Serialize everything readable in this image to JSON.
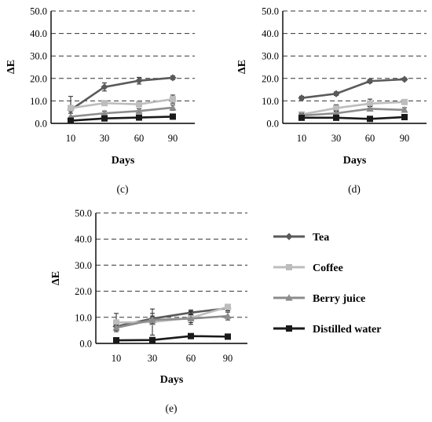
{
  "figure": {
    "legend": [
      {
        "name": "Tea",
        "color": "#5a5a5a",
        "marker": "diamond"
      },
      {
        "name": "Coffee",
        "color": "#bdbdbd",
        "marker": "square"
      },
      {
        "name": "Berry juice",
        "color": "#8c8c8c",
        "marker": "triangle"
      },
      {
        "name": "Distilled water",
        "color": "#1a1a1a",
        "marker": "square"
      }
    ]
  },
  "chart_data": [
    {
      "type": "line",
      "panel_label": "(c)",
      "xlabel": "Days",
      "ylabel": "ΔE",
      "categories": [
        "10",
        "30",
        "60",
        "90"
      ],
      "ylim": [
        0,
        50
      ],
      "yticks": [
        "0.0",
        "10.0",
        "20.0",
        "30.0",
        "40.0",
        "50.0"
      ],
      "grid": "dashed-horizontal",
      "series": [
        {
          "name": "Tea",
          "values": [
            6.0,
            16.2,
            19.0,
            20.3
          ],
          "errors": [
            6.0,
            1.8,
            1.5,
            0.8
          ]
        },
        {
          "name": "Coffee",
          "values": [
            6.8,
            9.0,
            8.5,
            10.8
          ],
          "errors": [
            1.2,
            0.8,
            1.2,
            1.8
          ]
        },
        {
          "name": "Berry juice",
          "values": [
            3.0,
            4.5,
            5.5,
            7.0
          ],
          "errors": [
            1.5,
            1.0,
            1.0,
            1.2
          ]
        },
        {
          "name": "Distilled water",
          "values": [
            1.2,
            2.2,
            2.6,
            3.0
          ],
          "errors": [
            0.5,
            0.5,
            0.5,
            0.5
          ]
        }
      ]
    },
    {
      "type": "line",
      "panel_label": "(d)",
      "xlabel": "Days",
      "ylabel": "ΔE",
      "categories": [
        "10",
        "30",
        "60",
        "90"
      ],
      "ylim": [
        0,
        50
      ],
      "yticks": [
        "0.0",
        "10.0",
        "20.0",
        "30.0",
        "40.0",
        "50.0"
      ],
      "grid": "dashed-horizontal",
      "series": [
        {
          "name": "Tea",
          "values": [
            11.3,
            13.2,
            18.8,
            19.6
          ],
          "errors": [
            0.8,
            0.8,
            0.8,
            0.6
          ]
        },
        {
          "name": "Coffee",
          "values": [
            4.0,
            6.8,
            8.8,
            9.5
          ],
          "errors": [
            1.0,
            1.5,
            2.0,
            1.0
          ]
        },
        {
          "name": "Berry juice",
          "values": [
            3.5,
            4.5,
            6.5,
            6.0
          ],
          "errors": [
            1.0,
            1.0,
            1.0,
            1.0
          ]
        },
        {
          "name": "Distilled water",
          "values": [
            2.5,
            2.5,
            2.0,
            2.8
          ],
          "errors": [
            0.5,
            0.5,
            0.5,
            0.5
          ]
        }
      ]
    },
    {
      "type": "line",
      "panel_label": "(e)",
      "xlabel": "Days",
      "ylabel": "ΔE",
      "categories": [
        "10",
        "30",
        "60",
        "90"
      ],
      "ylim": [
        0,
        50
      ],
      "yticks": [
        "0.0",
        "10.0",
        "20.0",
        "30.0",
        "40.0",
        "50.0"
      ],
      "grid": "dashed-horizontal",
      "series": [
        {
          "name": "Tea",
          "values": [
            6.5,
            9.5,
            11.8,
            13.5
          ],
          "errors": [
            1.5,
            2.0,
            1.0,
            1.0
          ]
        },
        {
          "name": "Coffee",
          "values": [
            8.0,
            8.2,
            9.8,
            14.0
          ],
          "errors": [
            3.5,
            5.0,
            2.5,
            1.0
          ]
        },
        {
          "name": "Berry juice",
          "values": [
            6.0,
            9.0,
            9.5,
            10.5
          ],
          "errors": [
            1.0,
            1.5,
            1.5,
            1.5
          ]
        },
        {
          "name": "Distilled water",
          "values": [
            1.2,
            1.3,
            2.8,
            2.6
          ],
          "errors": [
            0.4,
            0.4,
            0.4,
            0.4
          ]
        }
      ]
    }
  ]
}
